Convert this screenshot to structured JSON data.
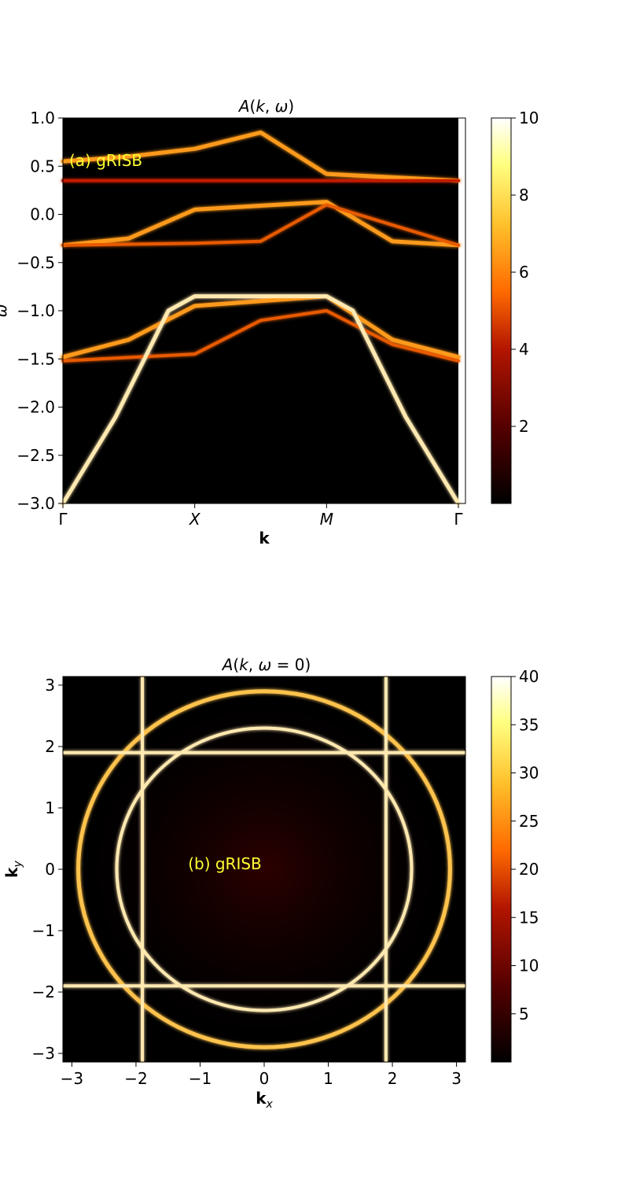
{
  "colors": {
    "colormap": [
      "#000000",
      "#550000",
      "#b31500",
      "#ff6a00",
      "#ffbf2a",
      "#ffff80",
      "#ffffff"
    ],
    "annotation": "#ffff33"
  },
  "chart_data": [
    {
      "type": "heatmap",
      "colormap": "afmhot",
      "title": "A(k, ω)",
      "title_main": "A(k,",
      "title_omega": "ω",
      "title_close": ")",
      "xlabel": "k",
      "ylabel": "ω",
      "ylim": [
        -3.0,
        1.0
      ],
      "clim": [
        0,
        10
      ],
      "x_ticks": [
        "Γ",
        "X",
        "M",
        "Γ"
      ],
      "y_ticks": [
        "1.0",
        "0.5",
        "0.0",
        "−0.5",
        "−1.0",
        "−1.5",
        "−2.0",
        "−2.5",
        "−3.0"
      ],
      "colorbar_ticks": [
        "10",
        "8",
        "6",
        "4",
        "2"
      ],
      "annotation": "(a) gRISB",
      "bands": [
        {
          "name": "upper-1",
          "path": [
            [
              0,
              0.55
            ],
            [
              0.5,
              0.6
            ],
            [
              1.0,
              0.68
            ],
            [
              1.5,
              0.85
            ],
            [
              2.0,
              0.42
            ],
            [
              3.0,
              0.35
            ]
          ]
        },
        {
          "name": "upper-flat",
          "path": [
            [
              0,
              0.35
            ],
            [
              1.0,
              0.35
            ],
            [
              2.0,
              0.35
            ],
            [
              3.0,
              0.35
            ]
          ]
        },
        {
          "name": "middle-1",
          "path": [
            [
              0,
              -0.32
            ],
            [
              0.5,
              -0.25
            ],
            [
              1.0,
              0.05
            ],
            [
              2.0,
              0.13
            ],
            [
              2.5,
              -0.28
            ],
            [
              3.0,
              -0.32
            ]
          ]
        },
        {
          "name": "middle-flat",
          "path": [
            [
              0,
              -0.32
            ],
            [
              1.0,
              -0.3
            ],
            [
              1.5,
              -0.28
            ],
            [
              2.0,
              0.1
            ],
            [
              3.0,
              -0.32
            ]
          ]
        },
        {
          "name": "lower-1",
          "path": [
            [
              0,
              -1.48
            ],
            [
              0.5,
              -1.3
            ],
            [
              1.0,
              -0.95
            ],
            [
              2.0,
              -0.85
            ],
            [
              2.5,
              -1.3
            ],
            [
              3.0,
              -1.48
            ]
          ]
        },
        {
          "name": "lower-2",
          "path": [
            [
              0,
              -1.52
            ],
            [
              1.0,
              -1.45
            ],
            [
              1.5,
              -1.1
            ],
            [
              2.0,
              -1.0
            ],
            [
              2.5,
              -1.35
            ],
            [
              3.0,
              -1.52
            ]
          ]
        },
        {
          "name": "steep",
          "path": [
            [
              0,
              -3.0
            ],
            [
              0.4,
              -2.1
            ],
            [
              0.8,
              -1.0
            ],
            [
              1.0,
              -0.85
            ],
            [
              2.0,
              -0.85
            ],
            [
              2.2,
              -1.0
            ],
            [
              2.6,
              -2.1
            ],
            [
              3.0,
              -3.0
            ]
          ]
        }
      ]
    },
    {
      "type": "heatmap",
      "colormap": "afmhot",
      "title": "A(k, ω = 0)",
      "title_main": "A(k,",
      "title_omega": "ω",
      "title_close": "= 0)",
      "xlabel": "k_x",
      "xlabel_main": "k",
      "xlabel_sub": "x",
      "ylabel": "k_y",
      "ylabel_main": "k",
      "ylabel_sub": "y",
      "xlim": [
        -3.14,
        3.14
      ],
      "ylim": [
        -3.14,
        3.14
      ],
      "clim": [
        0,
        40
      ],
      "x_ticks": [
        "−3",
        "−2",
        "−1",
        "0",
        "1",
        "2",
        "3"
      ],
      "y_ticks": [
        "3",
        "2",
        "1",
        "0",
        "−1",
        "−2",
        "−3"
      ],
      "colorbar_ticks": [
        "40",
        "35",
        "30",
        "25",
        "20",
        "15",
        "10",
        "5"
      ],
      "annotation": "(b) gRISB",
      "fermi_surfaces": [
        {
          "name": "ellipse-wide",
          "rx": 2.9,
          "ry": 2.9
        },
        {
          "name": "horizontal-lens",
          "rx": 2.3,
          "ry": 2.3
        },
        {
          "name": "vertical-lines",
          "x": [
            -1.9,
            1.9
          ]
        },
        {
          "name": "horizontal-lines",
          "y": [
            -1.9,
            1.9
          ]
        }
      ]
    }
  ]
}
